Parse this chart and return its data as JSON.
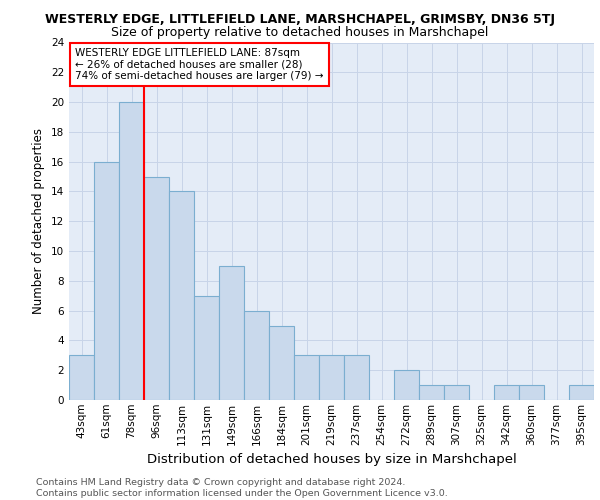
{
  "title1": "WESTERLY EDGE, LITTLEFIELD LANE, MARSHCHAPEL, GRIMSBY, DN36 5TJ",
  "title2": "Size of property relative to detached houses in Marshchapel",
  "xlabel": "Distribution of detached houses by size in Marshchapel",
  "ylabel": "Number of detached properties",
  "categories": [
    "43sqm",
    "61sqm",
    "78sqm",
    "96sqm",
    "113sqm",
    "131sqm",
    "149sqm",
    "166sqm",
    "184sqm",
    "201sqm",
    "219sqm",
    "237sqm",
    "254sqm",
    "272sqm",
    "289sqm",
    "307sqm",
    "325sqm",
    "342sqm",
    "360sqm",
    "377sqm",
    "395sqm"
  ],
  "values": [
    3,
    16,
    20,
    15,
    14,
    7,
    9,
    6,
    5,
    3,
    3,
    3,
    0,
    2,
    1,
    1,
    0,
    1,
    1,
    0,
    1
  ],
  "bar_color": "#c9d9ec",
  "bar_edge_color": "#7baed0",
  "bar_linewidth": 0.8,
  "grid_color": "#c8d4e8",
  "background_color": "#e4ecf7",
  "ylim": [
    0,
    24
  ],
  "yticks": [
    0,
    2,
    4,
    6,
    8,
    10,
    12,
    14,
    16,
    18,
    20,
    22,
    24
  ],
  "red_line_x": 2.5,
  "annotation_text": "WESTERLY EDGE LITTLEFIELD LANE: 87sqm\n← 26% of detached houses are smaller (28)\n74% of semi-detached houses are larger (79) →",
  "footer": "Contains HM Land Registry data © Crown copyright and database right 2024.\nContains public sector information licensed under the Open Government Licence v3.0.",
  "title1_fontsize": 9,
  "title2_fontsize": 9,
  "xlabel_fontsize": 9.5,
  "ylabel_fontsize": 8.5,
  "tick_fontsize": 7.5,
  "annotation_fontsize": 7.5,
  "footer_fontsize": 6.8
}
